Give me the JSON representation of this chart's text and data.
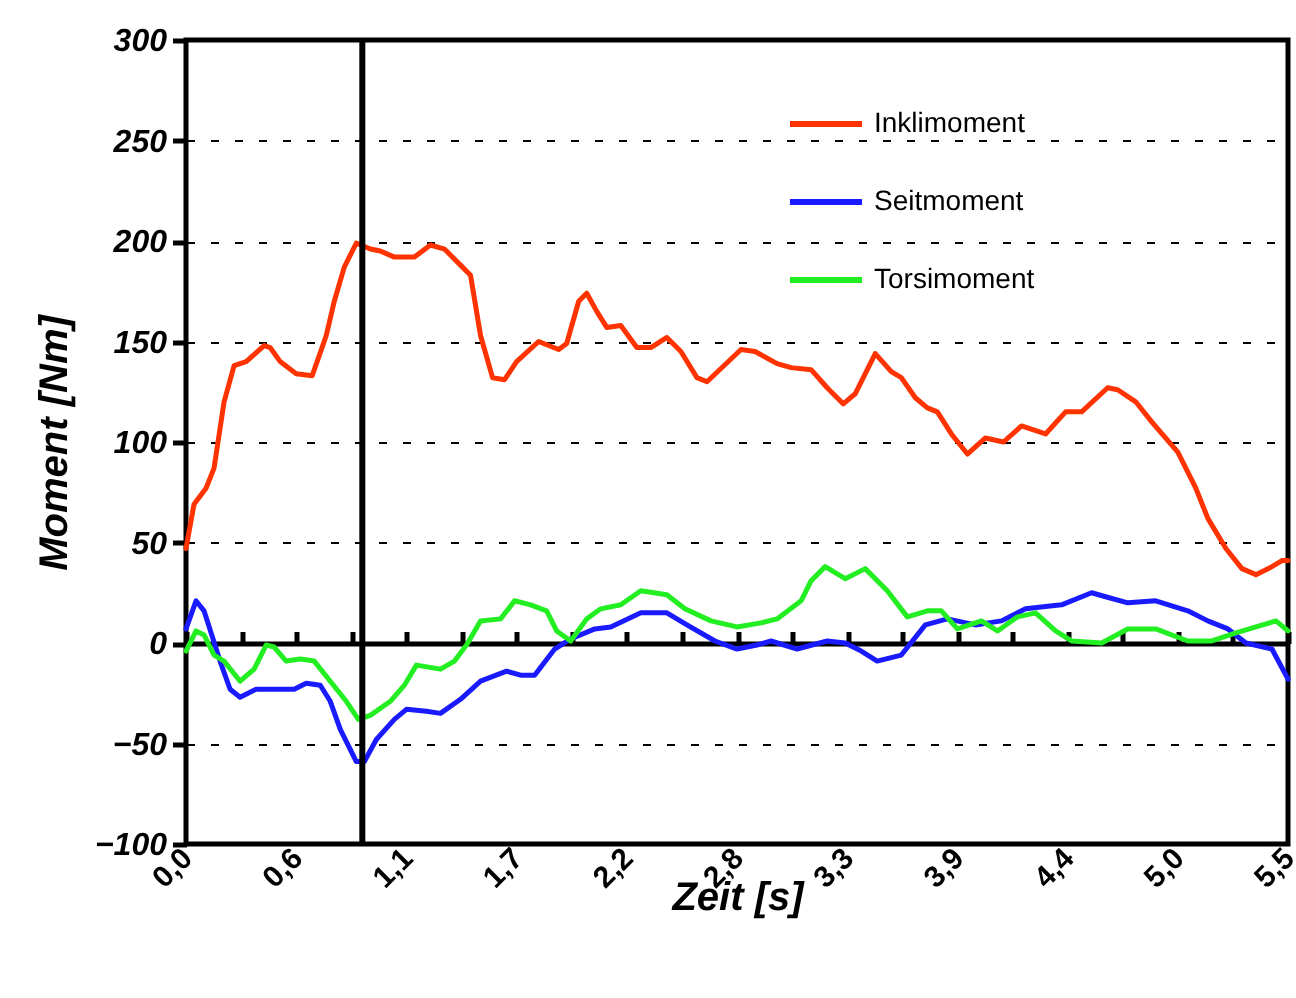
{
  "chart_data": {
    "type": "line",
    "xlabel": "Zeit [s]",
    "ylabel": "Moment [Nm]",
    "xlim": [
      0,
      5.5
    ],
    "ylim": [
      -100,
      300
    ],
    "xticks": [
      {
        "value": 0,
        "label": "0,0"
      },
      {
        "value": 0.275,
        "label": null
      },
      {
        "value": 0.55,
        "label": "0,6"
      },
      {
        "value": 0.825,
        "label": null
      },
      {
        "value": 1.1,
        "label": "1,1"
      },
      {
        "value": 1.375,
        "label": null
      },
      {
        "value": 1.65,
        "label": "1,7"
      },
      {
        "value": 1.925,
        "label": null
      },
      {
        "value": 2.2,
        "label": "2,2"
      },
      {
        "value": 2.475,
        "label": null
      },
      {
        "value": 2.75,
        "label": "2,8"
      },
      {
        "value": 3.025,
        "label": null
      },
      {
        "value": 3.3,
        "label": "3,3"
      },
      {
        "value": 3.575,
        "label": null
      },
      {
        "value": 3.85,
        "label": "3,9"
      },
      {
        "value": 4.125,
        "label": null
      },
      {
        "value": 4.4,
        "label": "4,4"
      },
      {
        "value": 4.675,
        "label": null
      },
      {
        "value": 4.95,
        "label": "5,0"
      },
      {
        "value": 5.225,
        "label": null
      },
      {
        "value": 5.5,
        "label": "5,5"
      }
    ],
    "yticks": [
      -100,
      -50,
      0,
      50,
      100,
      150,
      200,
      250,
      300
    ],
    "grid": "y",
    "legend": "top right",
    "line_style": "solid",
    "marker": "none",
    "ref_lines": [
      {
        "axis": "x",
        "value": 0.88,
        "color": "#000000"
      }
    ],
    "series": [
      {
        "name": "Inklimoment",
        "color": "#ff3300",
        "x": [
          0,
          0.04,
          0.1,
          0.14,
          0.19,
          0.24,
          0.3,
          0.39,
          0.42,
          0.47,
          0.55,
          0.63,
          0.7,
          0.74,
          0.79,
          0.85,
          0.92,
          0.97,
          1.04,
          1.14,
          1.22,
          1.29,
          1.37,
          1.42,
          1.47,
          1.53,
          1.59,
          1.65,
          1.76,
          1.86,
          1.9,
          1.96,
          2.0,
          2.05,
          2.1,
          2.17,
          2.25,
          2.32,
          2.4,
          2.47,
          2.55,
          2.6,
          2.77,
          2.84,
          2.95,
          3.02,
          3.12,
          3.2,
          3.28,
          3.34,
          3.44,
          3.52,
          3.57,
          3.64,
          3.7,
          3.75,
          3.82,
          3.9,
          3.99,
          4.08,
          4.17,
          4.29,
          4.39,
          4.47,
          4.6,
          4.65,
          4.74,
          4.82,
          4.95,
          5.04,
          5.1,
          5.19,
          5.27,
          5.34,
          5.42,
          5.47,
          5.5
        ],
        "values": [
          47,
          69,
          77,
          87,
          120,
          138,
          140,
          148,
          147,
          140,
          134,
          133,
          153,
          170,
          187,
          199,
          196,
          195,
          192,
          192,
          198,
          196,
          188,
          183,
          153,
          132,
          131,
          140,
          150,
          146,
          149,
          170,
          174,
          165,
          157,
          158,
          147,
          147,
          152,
          145,
          132,
          130,
          146,
          145,
          139,
          137,
          136,
          127,
          119,
          124,
          144,
          135,
          132,
          122,
          117,
          115,
          104,
          94,
          102,
          100,
          108,
          104,
          115,
          115,
          127,
          126,
          120,
          110,
          95,
          77,
          62,
          47,
          37,
          34,
          38,
          41,
          41
        ]
      },
      {
        "name": "Seitmoment",
        "color": "#1a1aff",
        "x": [
          0,
          0.05,
          0.09,
          0.17,
          0.22,
          0.27,
          0.35,
          0.54,
          0.6,
          0.67,
          0.72,
          0.77,
          0.85,
          0.89,
          0.95,
          1.04,
          1.1,
          1.2,
          1.27,
          1.37,
          1.47,
          1.6,
          1.67,
          1.74,
          1.84,
          1.92,
          2.04,
          2.12,
          2.27,
          2.4,
          2.5,
          2.64,
          2.75,
          2.85,
          2.92,
          3.05,
          3.2,
          3.29,
          3.37,
          3.45,
          3.57,
          3.69,
          3.8,
          3.94,
          4.07,
          4.19,
          4.37,
          4.52,
          4.59,
          4.7,
          4.84,
          5.0,
          5.1,
          5.2,
          5.29,
          5.42,
          5.5
        ],
        "values": [
          7,
          21,
          16,
          -9,
          -23,
          -27,
          -23,
          -23,
          -20,
          -21,
          -29,
          -43,
          -59,
          -59,
          -48,
          -38,
          -33,
          -34,
          -35,
          -28,
          -19,
          -14,
          -16,
          -16,
          -3,
          2,
          7,
          8,
          15,
          15,
          9,
          1,
          -3,
          -1,
          1,
          -3,
          1,
          0,
          -4,
          -9,
          -6,
          9,
          12,
          9,
          11,
          17,
          19,
          25,
          23,
          20,
          21,
          16,
          11,
          7,
          0,
          -3,
          -18
        ]
      },
      {
        "name": "Torsimoment",
        "color": "#22ee22",
        "x": [
          0,
          0.05,
          0.09,
          0.14,
          0.19,
          0.27,
          0.34,
          0.4,
          0.44,
          0.5,
          0.57,
          0.64,
          0.72,
          0.8,
          0.86,
          0.92,
          1.02,
          1.09,
          1.15,
          1.27,
          1.34,
          1.4,
          1.47,
          1.57,
          1.64,
          1.72,
          1.8,
          1.85,
          1.92,
          2.0,
          2.07,
          2.17,
          2.27,
          2.4,
          2.49,
          2.62,
          2.75,
          2.87,
          2.95,
          3.07,
          3.12,
          3.19,
          3.29,
          3.39,
          3.5,
          3.6,
          3.7,
          3.77,
          3.85,
          3.97,
          4.05,
          4.15,
          4.24,
          4.34,
          4.42,
          4.57,
          4.7,
          4.84,
          5.0,
          5.12,
          5.24,
          5.34,
          5.44,
          5.5
        ],
        "values": [
          -4,
          6,
          4,
          -6,
          -9,
          -19,
          -13,
          -1,
          -2,
          -9,
          -8,
          -9,
          -19,
          -29,
          -38,
          -36,
          -29,
          -21,
          -11,
          -13,
          -9,
          -1,
          11,
          12,
          21,
          19,
          16,
          6,
          1,
          12,
          17,
          19,
          26,
          24,
          17,
          11,
          8,
          10,
          12,
          21,
          31,
          38,
          32,
          37,
          26,
          13,
          16,
          16,
          7,
          11,
          6,
          13,
          15,
          6,
          1,
          0,
          7,
          7,
          1,
          1,
          5,
          8,
          11,
          6
        ]
      }
    ]
  }
}
